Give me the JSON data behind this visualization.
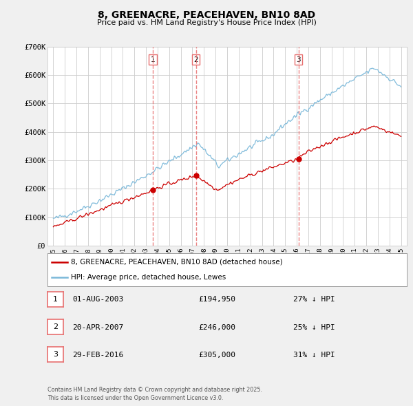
{
  "title": "8, GREENACRE, PEACEHAVEN, BN10 8AD",
  "subtitle": "Price paid vs. HM Land Registry's House Price Index (HPI)",
  "bg_color": "#f0f0f0",
  "plot_bg_color": "#ffffff",
  "grid_color": "#cccccc",
  "red_color": "#cc0000",
  "blue_color": "#7ab8d9",
  "ylim": [
    0,
    700000
  ],
  "yticks": [
    0,
    100000,
    200000,
    300000,
    400000,
    500000,
    600000,
    700000
  ],
  "ytick_labels": [
    "£0",
    "£100K",
    "£200K",
    "£300K",
    "£400K",
    "£500K",
    "£600K",
    "£700K"
  ],
  "sale_dates_num": [
    2003.583,
    2007.3,
    2016.164
  ],
  "sale_prices": [
    194950,
    246000,
    305000
  ],
  "sale_labels": [
    "1",
    "2",
    "3"
  ],
  "vline_color": "#e87070",
  "legend_label_red": "8, GREENACRE, PEACEHAVEN, BN10 8AD (detached house)",
  "legend_label_blue": "HPI: Average price, detached house, Lewes",
  "table_entries": [
    {
      "num": "1",
      "date": "01-AUG-2003",
      "price": "£194,950",
      "hpi": "27% ↓ HPI"
    },
    {
      "num": "2",
      "date": "20-APR-2007",
      "price": "£246,000",
      "hpi": "25% ↓ HPI"
    },
    {
      "num": "3",
      "date": "29-FEB-2016",
      "price": "£305,000",
      "hpi": "31% ↓ HPI"
    }
  ],
  "footer": "Contains HM Land Registry data © Crown copyright and database right 2025.\nThis data is licensed under the Open Government Licence v3.0."
}
